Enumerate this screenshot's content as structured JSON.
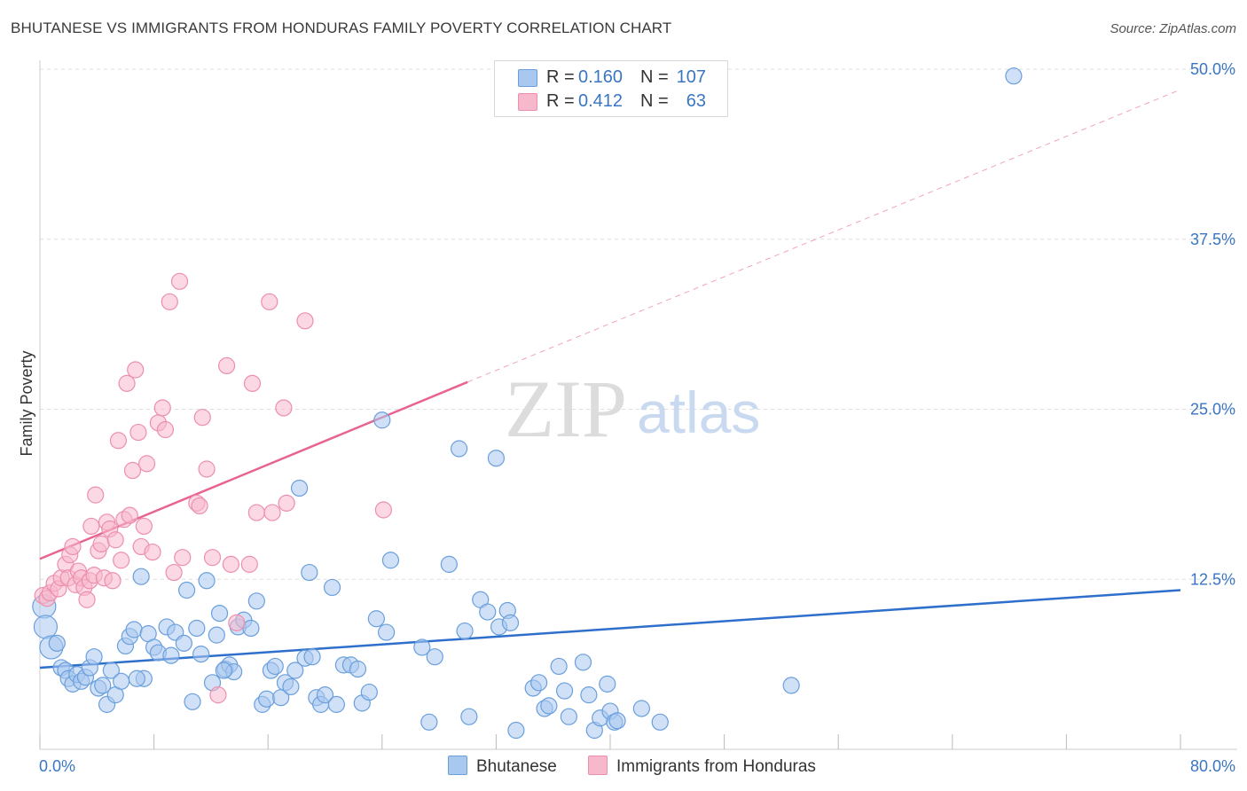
{
  "header": {
    "title": "BHUTANESE VS IMMIGRANTS FROM HONDURAS FAMILY POVERTY CORRELATION CHART",
    "source": "Source: ZipAtlas.com"
  },
  "legend": {
    "rows": [
      {
        "r_label": "R =",
        "r_value": "0.160",
        "n_label": "N =",
        "n_value": "107",
        "color": "#a9c8f0"
      },
      {
        "r_label": "R =",
        "r_value": "0.412",
        "n_label": "N =",
        "n_value": "63",
        "color": "#f7b8cc"
      }
    ],
    "bottom": [
      {
        "label": "Bhutanese",
        "color": "#a9c8f0"
      },
      {
        "label": "Immigrants from Honduras",
        "color": "#f7b8cc"
      }
    ]
  },
  "watermark": {
    "zip": "ZIP",
    "atlas": "atlas"
  },
  "colors": {
    "blue_fill": "#a9c8f0",
    "blue_stroke": "#6a9fdc",
    "blue_line": "#2f6fcc",
    "pink_fill": "#f7b8cc",
    "pink_stroke": "#ec8fae",
    "pink_line": "#e8648f",
    "axis_label": "#3a75c4",
    "grid": "#dddddd"
  },
  "chart_data": {
    "type": "scatter",
    "title": "BHUTANESE VS IMMIGRANTS FROM HONDURAS FAMILY POVERTY CORRELATION CHART",
    "xlabel": "",
    "ylabel": "Family Poverty",
    "xlim": [
      0,
      80
    ],
    "ylim": [
      0,
      50
    ],
    "x_tick_labels": [
      {
        "value": 0,
        "label": "0.0%"
      },
      {
        "value": 80,
        "label": "80.0%"
      }
    ],
    "y_tick_labels": [
      {
        "value": 12.5,
        "label": "12.5%"
      },
      {
        "value": 25,
        "label": "25.0%"
      },
      {
        "value": 37.5,
        "label": "37.5%"
      },
      {
        "value": 50,
        "label": "50.0%"
      }
    ],
    "grid": true,
    "series": [
      {
        "name": "Bhutanese",
        "R": 0.16,
        "N": 107,
        "trend": {
          "x0": 0,
          "y0": 6.0,
          "x1": 80,
          "y1": 11.7
        },
        "points": [
          [
            0.3,
            10.5
          ],
          [
            0.4,
            9.0
          ],
          [
            0.8,
            7.5
          ],
          [
            1.2,
            7.8
          ],
          [
            1.5,
            6.0
          ],
          [
            1.8,
            5.8
          ],
          [
            2.0,
            5.2
          ],
          [
            2.3,
            4.8
          ],
          [
            2.6,
            5.5
          ],
          [
            2.9,
            5.0
          ],
          [
            3.2,
            5.3
          ],
          [
            3.5,
            6.0
          ],
          [
            3.8,
            6.8
          ],
          [
            4.1,
            4.5
          ],
          [
            4.4,
            4.7
          ],
          [
            4.7,
            3.3
          ],
          [
            5.0,
            5.8
          ],
          [
            5.3,
            4.0
          ],
          [
            5.7,
            5.0
          ],
          [
            6.0,
            7.6
          ],
          [
            6.3,
            8.3
          ],
          [
            6.6,
            8.8
          ],
          [
            7.1,
            12.7
          ],
          [
            7.3,
            5.2
          ],
          [
            7.6,
            8.5
          ],
          [
            8.0,
            7.5
          ],
          [
            8.3,
            7.1
          ],
          [
            8.9,
            9.0
          ],
          [
            9.2,
            6.9
          ],
          [
            9.5,
            8.6
          ],
          [
            10.1,
            7.8
          ],
          [
            10.3,
            11.7
          ],
          [
            10.7,
            3.5
          ],
          [
            11.0,
            8.9
          ],
          [
            11.3,
            7.0
          ],
          [
            11.7,
            12.4
          ],
          [
            12.1,
            4.9
          ],
          [
            12.4,
            8.4
          ],
          [
            12.6,
            10.0
          ],
          [
            13.0,
            5.9
          ],
          [
            13.3,
            6.2
          ],
          [
            13.6,
            5.7
          ],
          [
            13.9,
            9.0
          ],
          [
            14.3,
            9.5
          ],
          [
            14.8,
            8.9
          ],
          [
            15.2,
            10.9
          ],
          [
            15.6,
            3.3
          ],
          [
            15.9,
            3.7
          ],
          [
            16.2,
            5.8
          ],
          [
            16.5,
            6.1
          ],
          [
            16.9,
            3.8
          ],
          [
            17.2,
            4.9
          ],
          [
            17.6,
            4.6
          ],
          [
            17.9,
            5.8
          ],
          [
            18.2,
            19.2
          ],
          [
            18.6,
            6.7
          ],
          [
            18.9,
            13.0
          ],
          [
            19.1,
            6.8
          ],
          [
            19.4,
            3.8
          ],
          [
            19.7,
            3.3
          ],
          [
            20.0,
            4.0
          ],
          [
            20.5,
            11.9
          ],
          [
            20.8,
            3.3
          ],
          [
            21.3,
            6.2
          ],
          [
            21.8,
            6.2
          ],
          [
            22.3,
            5.9
          ],
          [
            22.6,
            3.4
          ],
          [
            23.1,
            4.2
          ],
          [
            23.6,
            9.6
          ],
          [
            24.0,
            24.2
          ],
          [
            24.3,
            8.6
          ],
          [
            24.6,
            13.9
          ],
          [
            26.8,
            7.5
          ],
          [
            27.3,
            2.0
          ],
          [
            27.7,
            6.8
          ],
          [
            28.7,
            13.6
          ],
          [
            29.4,
            22.1
          ],
          [
            29.8,
            8.7
          ],
          [
            30.1,
            2.4
          ],
          [
            30.9,
            11.0
          ],
          [
            31.4,
            10.1
          ],
          [
            32.0,
            21.4
          ],
          [
            32.2,
            9.0
          ],
          [
            32.8,
            10.2
          ],
          [
            33.0,
            9.3
          ],
          [
            33.4,
            1.4
          ],
          [
            34.6,
            4.5
          ],
          [
            35.0,
            4.9
          ],
          [
            35.4,
            3.0
          ],
          [
            35.7,
            3.2
          ],
          [
            36.4,
            6.1
          ],
          [
            36.8,
            4.3
          ],
          [
            37.1,
            2.4
          ],
          [
            38.1,
            6.4
          ],
          [
            38.5,
            4.0
          ],
          [
            38.9,
            1.4
          ],
          [
            39.3,
            2.3
          ],
          [
            39.8,
            4.8
          ],
          [
            40.0,
            2.8
          ],
          [
            40.3,
            2.0
          ],
          [
            40.5,
            2.1
          ],
          [
            42.2,
            3.0
          ],
          [
            43.5,
            2.0
          ],
          [
            52.7,
            4.7
          ],
          [
            68.3,
            49.5
          ],
          [
            12.9,
            5.8
          ],
          [
            6.8,
            5.2
          ]
        ]
      },
      {
        "name": "Immigrants from Honduras",
        "R": 0.412,
        "N": 63,
        "trend": {
          "x0": 0,
          "y0": 14.0,
          "x1": 30,
          "y1": 27.0
        },
        "trend_extension": {
          "x0": 30,
          "y0": 27.0,
          "x1": 80,
          "y1": 48.5
        },
        "points": [
          [
            0.2,
            11.3
          ],
          [
            0.5,
            11.1
          ],
          [
            0.7,
            11.5
          ],
          [
            1.0,
            12.2
          ],
          [
            1.3,
            11.8
          ],
          [
            1.5,
            12.6
          ],
          [
            1.8,
            13.6
          ],
          [
            2.0,
            12.6
          ],
          [
            2.1,
            14.3
          ],
          [
            2.3,
            14.9
          ],
          [
            2.5,
            12.1
          ],
          [
            2.7,
            13.1
          ],
          [
            2.9,
            12.6
          ],
          [
            3.1,
            11.9
          ],
          [
            3.3,
            11.0
          ],
          [
            3.5,
            12.4
          ],
          [
            3.6,
            16.4
          ],
          [
            3.8,
            12.8
          ],
          [
            3.9,
            18.7
          ],
          [
            4.1,
            14.6
          ],
          [
            4.3,
            15.1
          ],
          [
            4.5,
            12.6
          ],
          [
            4.7,
            16.7
          ],
          [
            4.9,
            16.2
          ],
          [
            5.1,
            12.4
          ],
          [
            5.3,
            15.4
          ],
          [
            5.5,
            22.7
          ],
          [
            5.7,
            13.9
          ],
          [
            5.9,
            16.9
          ],
          [
            6.1,
            26.9
          ],
          [
            6.3,
            17.2
          ],
          [
            6.5,
            20.5
          ],
          [
            6.7,
            27.9
          ],
          [
            6.9,
            23.3
          ],
          [
            7.1,
            14.9
          ],
          [
            7.3,
            16.4
          ],
          [
            7.5,
            21.0
          ],
          [
            7.9,
            14.5
          ],
          [
            8.3,
            24.0
          ],
          [
            8.6,
            25.1
          ],
          [
            8.8,
            23.5
          ],
          [
            9.1,
            32.9
          ],
          [
            9.4,
            13.0
          ],
          [
            9.8,
            34.4
          ],
          [
            10.0,
            14.1
          ],
          [
            11.0,
            18.1
          ],
          [
            11.2,
            17.9
          ],
          [
            11.4,
            24.4
          ],
          [
            11.7,
            20.6
          ],
          [
            12.1,
            14.1
          ],
          [
            12.5,
            4.0
          ],
          [
            13.1,
            28.2
          ],
          [
            13.4,
            13.6
          ],
          [
            13.8,
            9.3
          ],
          [
            14.7,
            13.6
          ],
          [
            14.9,
            26.9
          ],
          [
            15.2,
            17.4
          ],
          [
            16.1,
            32.9
          ],
          [
            16.3,
            17.4
          ],
          [
            17.1,
            25.1
          ],
          [
            17.3,
            18.1
          ],
          [
            18.6,
            31.5
          ],
          [
            24.1,
            17.6
          ]
        ]
      }
    ]
  }
}
